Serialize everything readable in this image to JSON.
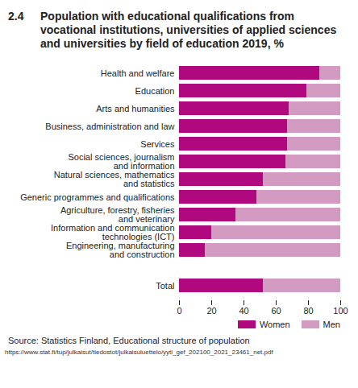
{
  "chart_data": {
    "type": "bar",
    "orientation": "horizontal",
    "stacked": true,
    "figure_number": "2.4",
    "title": "Population with educational qualifications from vocational institutions, universities of applied sciences and universities by field of education 2019, %",
    "categories": [
      "Health and welfare",
      "Education",
      "Arts and humanities",
      "Business, administration and law",
      "Services",
      "Social sciences, journalism\nand information",
      "Natural sciences, mathematics\nand statistics",
      "Generic programmes and qualifications",
      "Agriculture, forestry, fisheries\nand veterinary",
      "Information and communication\ntechnologies (ICT)",
      "Engineering, manufacturing\nand construction",
      "Total"
    ],
    "series": [
      {
        "name": "Women",
        "color": "#b0087f",
        "values": [
          87,
          79,
          68,
          67,
          67,
          66,
          52,
          48,
          35,
          20,
          16,
          52
        ]
      },
      {
        "name": "Men",
        "color": "#d49bc2",
        "values": [
          13,
          21,
          32,
          33,
          33,
          34,
          48,
          52,
          65,
          80,
          84,
          48
        ]
      }
    ],
    "xlim": [
      0,
      100
    ],
    "xticks": [
      0,
      20,
      40,
      60,
      80,
      100
    ],
    "legend": "bottom-right",
    "source": "Source:   Statistics Finland, Educational structure of population",
    "note": "https://www.stat.fi/tup/julkaisut/tiedostot/julkaisuluettelo/yyti_gef_202100_2021_23461_net.pdf"
  }
}
